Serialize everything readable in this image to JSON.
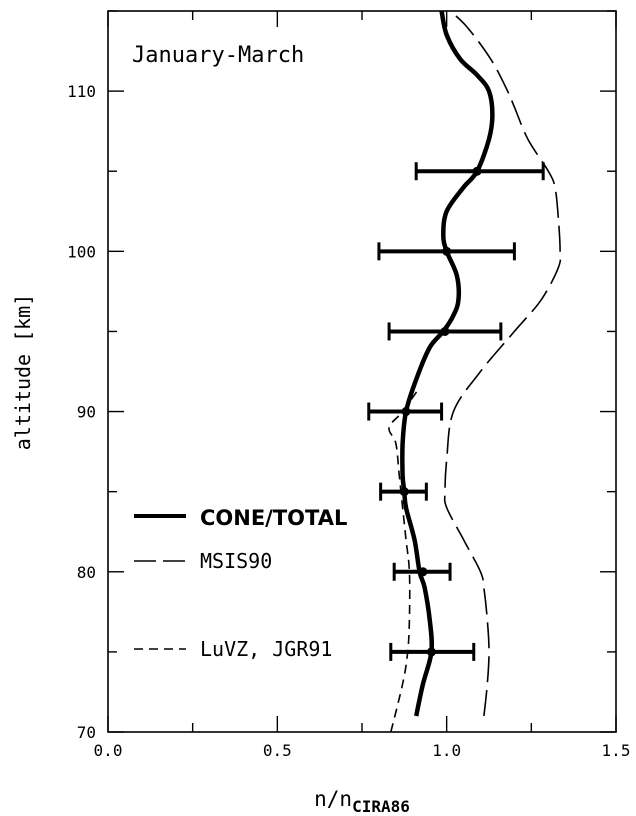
{
  "chart_data": {
    "type": "line",
    "title": "January-March",
    "xlabel_main": "n/n",
    "xlabel_sub": "CIRA86",
    "ylabel": "altitude [km]",
    "xlim": [
      0.0,
      1.5
    ],
    "ylim": [
      70,
      115
    ],
    "x_ticks": [
      "0.0",
      "0.5",
      "1.0",
      "1.5"
    ],
    "y_ticks": [
      "70",
      "80",
      "90",
      "100",
      "110"
    ],
    "grid": false,
    "legend_position": "lower-left",
    "series": [
      {
        "name": "CONE/TOTAL",
        "style": "thick-solid",
        "points": [
          [
            0.91,
            71
          ],
          [
            0.93,
            73
          ],
          [
            0.955,
            75
          ],
          [
            0.95,
            77
          ],
          [
            0.935,
            79
          ],
          [
            0.92,
            80
          ],
          [
            0.905,
            82
          ],
          [
            0.88,
            84
          ],
          [
            0.875,
            85
          ],
          [
            0.87,
            86
          ],
          [
            0.87,
            88
          ],
          [
            0.88,
            90
          ],
          [
            0.91,
            92
          ],
          [
            0.95,
            94
          ],
          [
            0.99,
            95
          ],
          [
            1.02,
            96
          ],
          [
            1.035,
            97
          ],
          [
            1.03,
            98.5
          ],
          [
            1.0,
            100
          ],
          [
            0.99,
            101
          ],
          [
            1.0,
            102.5
          ],
          [
            1.05,
            104
          ],
          [
            1.09,
            105
          ],
          [
            1.125,
            107
          ],
          [
            1.135,
            108.5
          ],
          [
            1.125,
            110
          ],
          [
            1.09,
            111
          ],
          [
            1.04,
            112
          ],
          [
            1.0,
            113.5
          ],
          [
            0.985,
            115
          ]
        ]
      },
      {
        "name": "MSIS90",
        "style": "long-dash",
        "points": [
          [
            1.11,
            71
          ],
          [
            1.12,
            73
          ],
          [
            1.125,
            75
          ],
          [
            1.12,
            77
          ],
          [
            1.11,
            79
          ],
          [
            1.1,
            80
          ],
          [
            1.05,
            82
          ],
          [
            1.0,
            84
          ],
          [
            0.995,
            85
          ],
          [
            1.0,
            87
          ],
          [
            1.02,
            90
          ],
          [
            1.1,
            92.5
          ],
          [
            1.2,
            95
          ],
          [
            1.28,
            97
          ],
          [
            1.33,
            99
          ],
          [
            1.335,
            100
          ],
          [
            1.33,
            102
          ],
          [
            1.32,
            104
          ],
          [
            1.3,
            105
          ],
          [
            1.24,
            107
          ],
          [
            1.2,
            109
          ],
          [
            1.18,
            110
          ],
          [
            1.13,
            112
          ],
          [
            1.06,
            114
          ],
          [
            1.01,
            115
          ]
        ]
      },
      {
        "name": "LuVZ, JGR91",
        "style": "short-dash",
        "points": [
          [
            0.835,
            70
          ],
          [
            0.87,
            73
          ],
          [
            0.885,
            75
          ],
          [
            0.89,
            77
          ],
          [
            0.89,
            80
          ],
          [
            0.88,
            82
          ],
          [
            0.87,
            84
          ],
          [
            0.86,
            86
          ],
          [
            0.85,
            88
          ],
          [
            0.83,
            89
          ],
          [
            0.87,
            90
          ],
          [
            0.92,
            91.5
          ]
        ]
      }
    ],
    "error_bars": [
      {
        "x": 0.955,
        "y": 75,
        "xmin": 0.835,
        "xmax": 1.08
      },
      {
        "x": 0.93,
        "y": 80,
        "xmin": 0.845,
        "xmax": 1.01
      },
      {
        "x": 0.875,
        "y": 85,
        "xmin": 0.805,
        "xmax": 0.94
      },
      {
        "x": 0.88,
        "y": 90,
        "xmin": 0.77,
        "xmax": 0.985
      },
      {
        "x": 0.995,
        "y": 95,
        "xmin": 0.83,
        "xmax": 1.16
      },
      {
        "x": 1.0,
        "y": 100,
        "xmin": 0.8,
        "xmax": 1.2
      },
      {
        "x": 1.09,
        "y": 105,
        "xmin": 0.91,
        "xmax": 1.285
      }
    ]
  }
}
